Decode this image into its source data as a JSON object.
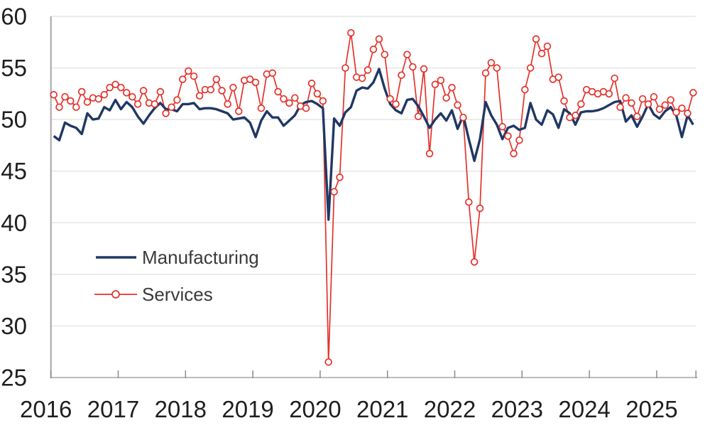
{
  "chart_data": {
    "type": "line",
    "title": "",
    "frequency": "monthly",
    "x_range_label": "Jan 2016 - Jul 2025",
    "x_tick_labels": [
      "2016",
      "2017",
      "2018",
      "2019",
      "2020",
      "2021",
      "2022",
      "2023",
      "2024",
      "2025"
    ],
    "y_ticks": [
      25,
      30,
      35,
      40,
      45,
      50,
      55,
      60
    ],
    "ylim": [
      25,
      60
    ],
    "grid": "horizontal",
    "legend_position": "inside-left-middle",
    "series": [
      {
        "name": "Manufacturing",
        "color": "#1f3864",
        "line_style": "solid",
        "marker": "none",
        "values_by_year": {
          "2016": [
            48.4,
            48.0,
            49.7,
            49.4,
            49.2,
            48.6,
            50.6,
            50.0,
            50.1,
            51.2,
            50.9,
            51.9
          ],
          "2017": [
            51.0,
            51.7,
            51.2,
            50.3,
            49.6,
            50.4,
            51.1,
            51.6,
            51.0,
            51.0,
            50.8,
            51.5
          ],
          "2018": [
            51.5,
            51.6,
            51.0,
            51.1,
            51.1,
            51.0,
            50.8,
            50.6,
            50.0,
            50.1,
            50.2,
            49.7
          ],
          "2019": [
            48.3,
            49.9,
            50.8,
            50.2,
            50.2,
            49.4,
            49.9,
            50.4,
            51.4,
            51.7,
            51.8,
            51.5
          ],
          "2020": [
            51.1,
            40.3,
            50.1,
            49.4,
            50.7,
            51.2,
            52.8,
            53.1,
            53.0,
            53.6,
            54.9,
            53.0
          ],
          "2021": [
            51.5,
            50.9,
            50.6,
            51.9,
            52.0,
            51.3,
            50.3,
            49.2,
            50.0,
            50.6,
            49.9,
            50.9
          ],
          "2022": [
            49.1,
            50.4,
            48.1,
            46.0,
            48.1,
            51.7,
            50.4,
            49.5,
            48.1,
            49.2,
            49.4,
            49.0
          ],
          "2023": [
            49.2,
            51.6,
            50.0,
            49.5,
            50.9,
            50.5,
            49.2,
            51.0,
            50.6,
            49.5,
            50.7,
            50.8
          ],
          "2024": [
            50.8,
            50.9,
            51.1,
            51.4,
            51.7,
            51.8,
            49.8,
            50.4,
            49.3,
            50.3,
            51.5,
            50.5
          ],
          "2025": [
            50.1,
            50.8,
            51.2,
            50.4,
            48.3,
            50.4,
            49.5
          ]
        }
      },
      {
        "name": "Services",
        "color": "#e5312b",
        "line_style": "solid",
        "marker": "open-circle",
        "values_by_year": {
          "2016": [
            52.4,
            51.2,
            52.2,
            51.8,
            51.2,
            52.7,
            51.7,
            52.1,
            52.0,
            52.4,
            53.1,
            53.4
          ],
          "2017": [
            53.1,
            52.6,
            52.2,
            51.5,
            52.8,
            51.6,
            51.5,
            52.7,
            50.6,
            51.2,
            51.9,
            53.9
          ],
          "2018": [
            54.7,
            54.2,
            52.3,
            52.9,
            52.9,
            53.9,
            52.8,
            51.5,
            53.1,
            50.8,
            53.8,
            53.9
          ],
          "2019": [
            53.6,
            51.1,
            54.4,
            54.5,
            52.7,
            52.0,
            51.6,
            52.1,
            51.3,
            51.1,
            53.5,
            52.5
          ],
          "2020": [
            51.8,
            26.5,
            43.0,
            44.4,
            55.0,
            58.4,
            54.1,
            54.0,
            54.8,
            56.8,
            57.8,
            56.3
          ],
          "2021": [
            52.0,
            51.5,
            54.3,
            56.3,
            55.1,
            50.3,
            54.9,
            46.7,
            53.4,
            53.8,
            52.1,
            53.1
          ],
          "2022": [
            51.4,
            50.2,
            42.0,
            36.2,
            41.4,
            54.5,
            55.5,
            55.0,
            49.3,
            48.4,
            46.7,
            48.0
          ],
          "2023": [
            52.9,
            55.0,
            57.8,
            56.4,
            57.1,
            53.9,
            54.1,
            51.8,
            50.2,
            50.4,
            51.5,
            52.9
          ],
          "2024": [
            52.7,
            52.5,
            52.7,
            52.5,
            54.0,
            51.2,
            52.1,
            51.6,
            50.3,
            52.0,
            51.5,
            52.2
          ],
          "2025": [
            51.0,
            51.4,
            51.9,
            50.7,
            51.1,
            50.6,
            52.6
          ]
        }
      }
    ],
    "colors": {
      "manufacturing_line": "#1f3864",
      "services_line": "#e5312b",
      "gridline": "#d9d9d9",
      "axis_line": "#a6a6a6",
      "tick": "#8c8c8c",
      "axis_text": "#1f1f1f",
      "legend_text": "#3a3a3a",
      "marker_fill": "#ffffff"
    }
  },
  "legend": {
    "manufacturing_label": "Manufacturing",
    "services_label": "Services"
  }
}
